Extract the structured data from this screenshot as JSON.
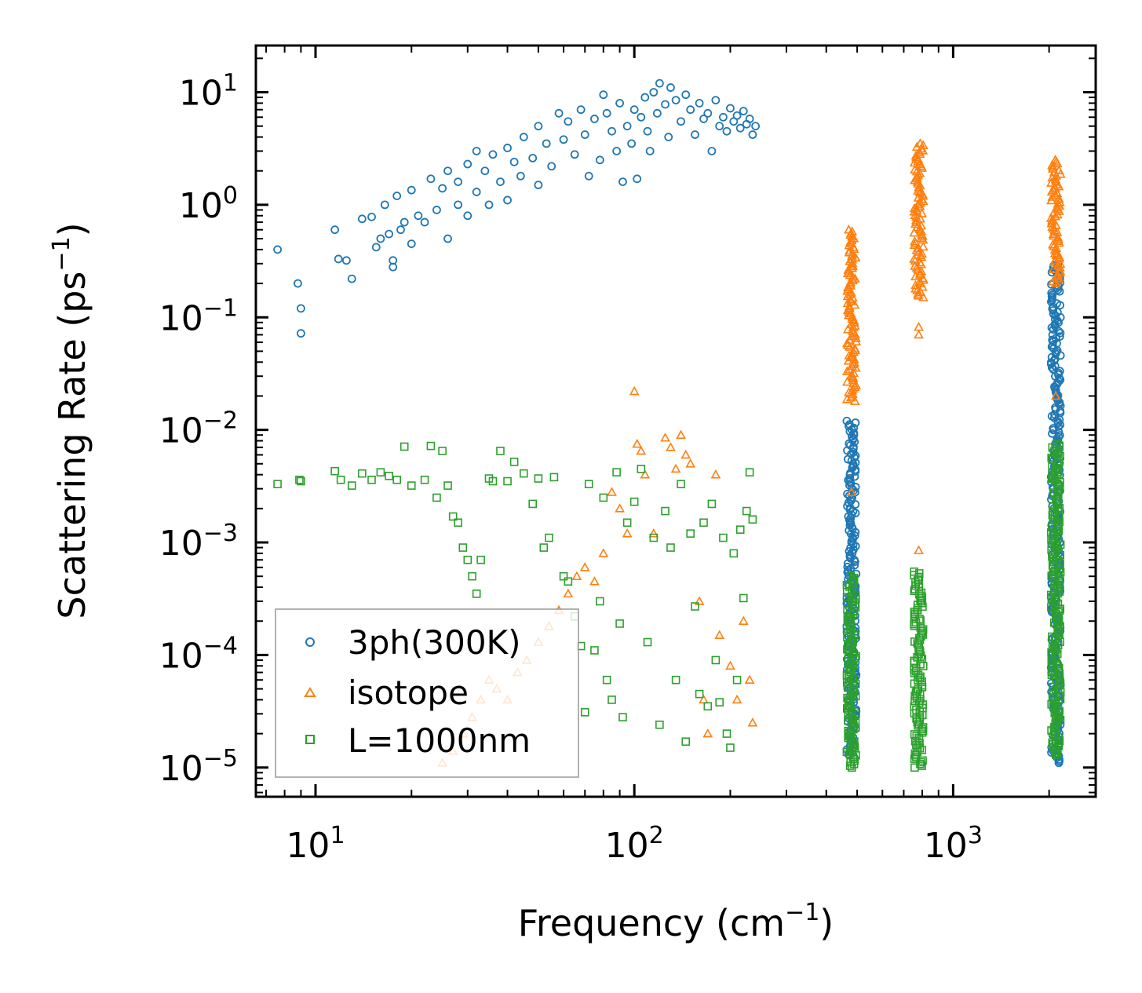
{
  "chart_data": {
    "type": "scatter",
    "xscale": "log",
    "yscale": "log",
    "xlabel": "Frequency (cm",
    "xlabel_sup": "−1",
    "xlabel_tail": ")",
    "ylabel": "Scattering Rate (ps",
    "ylabel_sup": "−1",
    "ylabel_tail": ")",
    "xlim": [
      6.5,
      2800
    ],
    "ylim": [
      5.5e-06,
      26
    ],
    "x_ticks": [
      {
        "value": 10,
        "base": "10",
        "exp": "1"
      },
      {
        "value": 100,
        "base": "10",
        "exp": "2"
      },
      {
        "value": 1000,
        "base": "10",
        "exp": "3"
      }
    ],
    "y_ticks": [
      {
        "value": 10,
        "base": "10",
        "exp": "1"
      },
      {
        "value": 1,
        "base": "10",
        "exp": "0"
      },
      {
        "value": 0.1,
        "base": "10",
        "exp": "−1"
      },
      {
        "value": 0.01,
        "base": "10",
        "exp": "−2"
      },
      {
        "value": 0.001,
        "base": "10",
        "exp": "−3"
      },
      {
        "value": 0.0001,
        "base": "10",
        "exp": "−4"
      },
      {
        "value": 1e-05,
        "base": "10",
        "exp": "−5"
      }
    ],
    "legend": {
      "position": "lower-left",
      "entries": [
        {
          "label": "3ph(300K)",
          "marker": "circle",
          "color": "#1f77b4"
        },
        {
          "label": "isotope",
          "marker": "triangle",
          "color": "#ff7f0e"
        },
        {
          "label": "L=1000nm",
          "marker": "square",
          "color": "#2ca02c"
        }
      ]
    },
    "series": [
      {
        "name": "3ph(300K)",
        "marker": "circle",
        "color": "#1f77b4",
        "points": [
          [
            7.6,
            0.4
          ],
          [
            8.8,
            0.2
          ],
          [
            9.0,
            0.12
          ],
          [
            9.0,
            0.072
          ],
          [
            11.5,
            0.6
          ],
          [
            11.8,
            0.33
          ],
          [
            12.5,
            0.32
          ],
          [
            13.0,
            0.22
          ],
          [
            14,
            0.75
          ],
          [
            15,
            0.78
          ],
          [
            15.5,
            0.42
          ],
          [
            16,
            0.5
          ],
          [
            16.5,
            1.0
          ],
          [
            17,
            0.55
          ],
          [
            17.5,
            0.32
          ],
          [
            17.5,
            0.28
          ],
          [
            18,
            1.2
          ],
          [
            18.5,
            0.6
          ],
          [
            19,
            0.7
          ],
          [
            20,
            0.45
          ],
          [
            20,
            1.35
          ],
          [
            21,
            0.8
          ],
          [
            22,
            0.7
          ],
          [
            23,
            1.7
          ],
          [
            24,
            0.9
          ],
          [
            25,
            1.4
          ],
          [
            26,
            0.5
          ],
          [
            26,
            2.0
          ],
          [
            28,
            1.0
          ],
          [
            28,
            1.6
          ],
          [
            30,
            2.3
          ],
          [
            30,
            0.8
          ],
          [
            32,
            3.0
          ],
          [
            32,
            1.3
          ],
          [
            34,
            2.0
          ],
          [
            35,
            1.0
          ],
          [
            36,
            2.8
          ],
          [
            38,
            1.6
          ],
          [
            40,
            3.2
          ],
          [
            40,
            1.1
          ],
          [
            42,
            2.4
          ],
          [
            44,
            1.8
          ],
          [
            45,
            4.0
          ],
          [
            48,
            2.6
          ],
          [
            50,
            5.0
          ],
          [
            50,
            1.5
          ],
          [
            53,
            3.5
          ],
          [
            55,
            2.2
          ],
          [
            58,
            6.5
          ],
          [
            60,
            3.8
          ],
          [
            62,
            5.5
          ],
          [
            65,
            2.8
          ],
          [
            68,
            7.0
          ],
          [
            70,
            4.2
          ],
          [
            72,
            1.8
          ],
          [
            75,
            5.8
          ],
          [
            78,
            2.5
          ],
          [
            80,
            9.5
          ],
          [
            82,
            6.5
          ],
          [
            85,
            4.5
          ],
          [
            88,
            3.0
          ],
          [
            90,
            8.0
          ],
          [
            92,
            1.6
          ],
          [
            95,
            5.0
          ],
          [
            98,
            3.5
          ],
          [
            100,
            7.0
          ],
          [
            102,
            1.7
          ],
          [
            105,
            6.0
          ],
          [
            108,
            9.0
          ],
          [
            110,
            4.5
          ],
          [
            112,
            3.0
          ],
          [
            115,
            10
          ],
          [
            118,
            6.5
          ],
          [
            120,
            12
          ],
          [
            125,
            7.8
          ],
          [
            128,
            4.0
          ],
          [
            130,
            11
          ],
          [
            135,
            8.5
          ],
          [
            140,
            5.5
          ],
          [
            145,
            9.5
          ],
          [
            150,
            7.0
          ],
          [
            155,
            4.2
          ],
          [
            160,
            8.0
          ],
          [
            165,
            5.8
          ],
          [
            170,
            6.5
          ],
          [
            175,
            3.0
          ],
          [
            180,
            8.5
          ],
          [
            185,
            5.0
          ],
          [
            190,
            6.0
          ],
          [
            195,
            4.5
          ],
          [
            200,
            7.2
          ],
          [
            205,
            5.5
          ],
          [
            210,
            6.2
          ],
          [
            215,
            4.8
          ],
          [
            220,
            6.8
          ],
          [
            225,
            5.2
          ],
          [
            230,
            5.8
          ],
          [
            235,
            4.2
          ],
          [
            240,
            5.0
          ]
        ],
        "bands": [
          {
            "x": 480,
            "ymin": 1.3e-05,
            "ymax": 0.012
          },
          {
            "x": 2100,
            "ymin": 1.1e-05,
            "ymax": 0.3
          }
        ]
      },
      {
        "name": "isotope",
        "marker": "triangle",
        "color": "#ff7f0e",
        "points": [
          [
            25,
            1.1e-05
          ],
          [
            27,
            1.4e-05
          ],
          [
            29,
            2e-05
          ],
          [
            31,
            2.8e-05
          ],
          [
            33,
            4e-05
          ],
          [
            35,
            6e-05
          ],
          [
            37,
            5e-05
          ],
          [
            40,
            4e-05
          ],
          [
            43,
            7e-05
          ],
          [
            46,
            9e-05
          ],
          [
            50,
            0.00013
          ],
          [
            54,
            0.00018
          ],
          [
            58,
            0.00025
          ],
          [
            62,
            0.00035
          ],
          [
            66,
            0.0005
          ],
          [
            70,
            0.0006
          ],
          [
            75,
            0.00045
          ],
          [
            80,
            0.0008
          ],
          [
            85,
            0.0028
          ],
          [
            90,
            0.002
          ],
          [
            95,
            0.0012
          ],
          [
            100,
            0.022
          ],
          [
            102,
            0.0075
          ],
          [
            105,
            0.0065
          ],
          [
            108,
            0.004
          ],
          [
            115,
            0.0012
          ],
          [
            125,
            0.0085
          ],
          [
            130,
            0.007
          ],
          [
            135,
            0.0045
          ],
          [
            140,
            0.009
          ],
          [
            145,
            0.006
          ],
          [
            150,
            0.005
          ],
          [
            160,
            0.0003
          ],
          [
            165,
            4e-05
          ],
          [
            170,
            2e-05
          ],
          [
            180,
            0.004
          ],
          [
            185,
            0.00015
          ],
          [
            200,
            8e-05
          ],
          [
            210,
            4e-05
          ],
          [
            220,
            0.0002
          ],
          [
            230,
            6e-05
          ],
          [
            235,
            2.5e-05
          ],
          [
            480,
            0.0028
          ],
          [
            780,
            0.07
          ],
          [
            780,
            0.082
          ],
          [
            780,
            0.00085
          ],
          [
            2100,
            0.02
          ]
        ],
        "bands": [
          {
            "x": 480,
            "ymin": 0.018,
            "ymax": 0.6
          },
          {
            "x": 780,
            "ymin": 0.15,
            "ymax": 3.5
          },
          {
            "x": 2100,
            "ymin": 0.2,
            "ymax": 2.5
          }
        ]
      },
      {
        "name": "L=1000nm",
        "marker": "square",
        "color": "#2ca02c",
        "points": [
          [
            7.6,
            0.0033
          ],
          [
            8.9,
            0.0036
          ],
          [
            9.0,
            0.0035
          ],
          [
            11.5,
            0.0043
          ],
          [
            12,
            0.0036
          ],
          [
            13,
            0.0032
          ],
          [
            14,
            0.0041
          ],
          [
            15,
            0.0036
          ],
          [
            16,
            0.0042
          ],
          [
            17,
            0.0039
          ],
          [
            18,
            0.0036
          ],
          [
            19,
            0.0071
          ],
          [
            20,
            0.0032
          ],
          [
            22,
            0.0036
          ],
          [
            23,
            0.0072
          ],
          [
            24,
            0.0025
          ],
          [
            25,
            0.0065
          ],
          [
            26,
            0.0032
          ],
          [
            27,
            0.0017
          ],
          [
            28,
            0.0015
          ],
          [
            29,
            0.0009
          ],
          [
            30,
            0.0007
          ],
          [
            31,
            0.0005
          ],
          [
            32,
            0.00035
          ],
          [
            33,
            0.0007
          ],
          [
            35,
            0.0037
          ],
          [
            36,
            0.0035
          ],
          [
            38,
            0.0065
          ],
          [
            40,
            0.0035
          ],
          [
            42,
            0.0052
          ],
          [
            45,
            0.0041
          ],
          [
            48,
            0.0022
          ],
          [
            50,
            0.0037
          ],
          [
            52,
            0.0009
          ],
          [
            54,
            0.0011
          ],
          [
            56,
            0.0038
          ],
          [
            60,
            0.0005
          ],
          [
            62,
            0.00045
          ],
          [
            65,
            0.00022
          ],
          [
            68,
            0.00012
          ],
          [
            70,
            3.1e-05
          ],
          [
            72,
            0.0033
          ],
          [
            75,
            0.00011
          ],
          [
            78,
            0.0003
          ],
          [
            80,
            0.0025
          ],
          [
            82,
            6e-05
          ],
          [
            85,
            4e-05
          ],
          [
            88,
            0.0042
          ],
          [
            90,
            0.00019
          ],
          [
            92,
            2.8e-05
          ],
          [
            95,
            0.0015
          ],
          [
            100,
            0.0023
          ],
          [
            105,
            0.0045
          ],
          [
            110,
            0.00013
          ],
          [
            115,
            0.0011
          ],
          [
            120,
            2.4e-05
          ],
          [
            125,
            0.0019
          ],
          [
            130,
            0.0009
          ],
          [
            135,
            6e-05
          ],
          [
            140,
            0.0033
          ],
          [
            145,
            1.7e-05
          ],
          [
            150,
            0.0012
          ],
          [
            155,
            0.00027
          ],
          [
            160,
            4.5e-05
          ],
          [
            165,
            0.0015
          ],
          [
            170,
            3.5e-05
          ],
          [
            175,
            0.0022
          ],
          [
            180,
            9e-05
          ],
          [
            185,
            3.8e-05
          ],
          [
            190,
            0.0011
          ],
          [
            195,
            2e-05
          ],
          [
            200,
            1.5e-05
          ],
          [
            205,
            0.0008
          ],
          [
            210,
            6e-05
          ],
          [
            215,
            0.0013
          ],
          [
            220,
            0.00032
          ],
          [
            225,
            0.0019
          ],
          [
            230,
            0.0042
          ],
          [
            235,
            0.0016
          ]
        ],
        "bands": [
          {
            "x": 480,
            "ymin": 1e-05,
            "ymax": 0.0005
          },
          {
            "x": 780,
            "ymin": 1e-05,
            "ymax": 0.00055
          },
          {
            "x": 2100,
            "ymin": 1.3e-05,
            "ymax": 0.0075
          }
        ]
      }
    ]
  }
}
